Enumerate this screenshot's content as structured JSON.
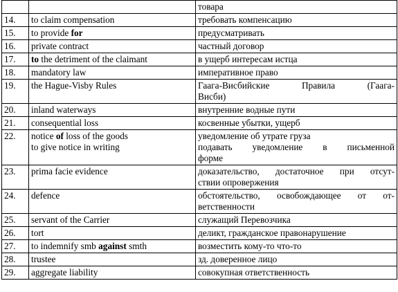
{
  "rows": [
    {
      "num": "",
      "en": [
        [
          {
            "t": ""
          }
        ]
      ],
      "ru": [
        [
          "товара"
        ]
      ]
    },
    {
      "num": "14.",
      "en": [
        [
          {
            "t": "to claim compensation"
          }
        ]
      ],
      "ru": [
        [
          "требовать компенсацию"
        ]
      ]
    },
    {
      "num": "15.",
      "en": [
        [
          {
            "t": "to provide "
          },
          {
            "t": "for",
            "b": true
          }
        ]
      ],
      "ru": [
        [
          "предусматривать"
        ]
      ]
    },
    {
      "num": "16.",
      "en": [
        [
          {
            "t": "private contract"
          }
        ]
      ],
      "ru": [
        [
          "частный договор"
        ]
      ]
    },
    {
      "num": "17.",
      "en": [
        [
          {
            "t": "to",
            "b": true
          },
          {
            "t": " the detriment of the claimant"
          }
        ]
      ],
      "ru": [
        [
          "в ущерб интересам истца"
        ]
      ]
    },
    {
      "num": "18.",
      "en": [
        [
          {
            "t": "mandatory law"
          }
        ]
      ],
      "ru": [
        [
          "императивное право"
        ]
      ]
    },
    {
      "num": "19.",
      "en": [
        [
          {
            "t": "the Hague-Visby Rules"
          }
        ]
      ],
      "ru": [
        [
          "Гаага-Висбийские Правила (Гаага-",
          "Висби)"
        ]
      ]
    },
    {
      "num": "20.",
      "en": [
        [
          {
            "t": "inland waterways"
          }
        ]
      ],
      "ru": [
        [
          "внутренние водные пути"
        ]
      ]
    },
    {
      "num": "21.",
      "en": [
        [
          {
            "t": "consequential loss"
          }
        ]
      ],
      "ru": [
        [
          "косвенные убытки, ущерб"
        ]
      ]
    },
    {
      "num": "22.",
      "en": [
        [
          {
            "t": "notice "
          },
          {
            "t": "of",
            "b": true
          },
          {
            "t": " loss of the goods"
          }
        ],
        [
          {
            "t": "to give notice in writing"
          }
        ]
      ],
      "ru": [
        [
          "уведомление об утрате груза"
        ],
        [
          "подавать уведомление в письменной",
          "форме"
        ]
      ]
    },
    {
      "num": "23.",
      "en": [
        [
          {
            "t": "prima facie evidence"
          }
        ]
      ],
      "ru": [
        [
          "доказательство, достаточное при отсут-",
          "ствии опровержения"
        ]
      ]
    },
    {
      "num": "24.",
      "en": [
        [
          {
            "t": "defence"
          }
        ]
      ],
      "ru": [
        [
          "обстоятельство, освобождающее от от-",
          "ветственности"
        ]
      ]
    },
    {
      "num": "25.",
      "en": [
        [
          {
            "t": "servant of the Carrier"
          }
        ]
      ],
      "ru": [
        [
          "служащий Перевозчика"
        ]
      ]
    },
    {
      "num": "26.",
      "en": [
        [
          {
            "t": "tort"
          }
        ]
      ],
      "ru": [
        [
          "деликт, гражданское правонарушение"
        ]
      ]
    },
    {
      "num": "27.",
      "en": [
        [
          {
            "t": "to indemnify smb "
          },
          {
            "t": "against",
            "b": true
          },
          {
            "t": " smth"
          }
        ]
      ],
      "ru": [
        [
          "возместить кому-то что-то"
        ]
      ]
    },
    {
      "num": "28.",
      "en": [
        [
          {
            "t": "trustee"
          }
        ]
      ],
      "ru": [
        [
          "зд. доверенное лицо"
        ]
      ]
    },
    {
      "num": "29.",
      "en": [
        [
          {
            "t": "aggregate liability"
          }
        ]
      ],
      "ru": [
        [
          "совокупная ответственность"
        ]
      ]
    }
  ]
}
